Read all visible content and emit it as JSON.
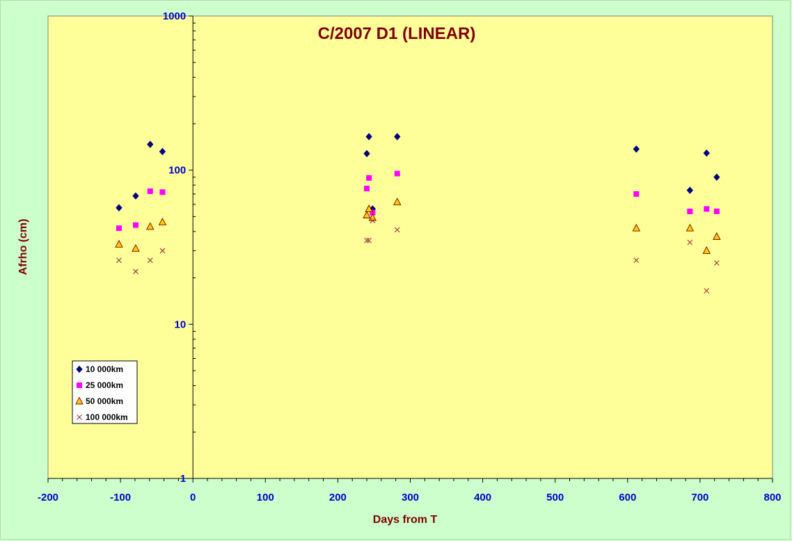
{
  "chart_data": {
    "type": "scatter",
    "title": "C/2007 D1 (LINEAR)",
    "xlabel": "Days from T",
    "ylabel": "Afrho (cm)",
    "xlim": [
      -200,
      800
    ],
    "ylim": [
      1,
      1000
    ],
    "y_scale": "log",
    "x_ticks": [
      -200,
      -100,
      0,
      100,
      200,
      300,
      400,
      500,
      600,
      700,
      800
    ],
    "y_ticks": [
      1,
      10,
      100,
      1000
    ],
    "grid": false,
    "legend_position": "bottom-left",
    "colors": {
      "plot_background": "#ffff99",
      "page_background": "#ccffcc",
      "title": "#800000",
      "axis_title": "#800000",
      "tick_labels": "#0000cc"
    },
    "series": [
      {
        "name": "10 000km",
        "marker": "diamond",
        "color": "#000080",
        "x": [
          -102,
          -79,
          -59,
          -42,
          240,
          243,
          248,
          282,
          612,
          686,
          709,
          723
        ],
        "y": [
          57,
          68,
          147,
          132,
          128,
          165,
          56,
          165,
          137,
          74,
          129,
          90
        ]
      },
      {
        "name": "25 000km",
        "marker": "square",
        "color": "#ff00ff",
        "x": [
          -102,
          -79,
          -59,
          -42,
          240,
          243,
          248,
          282,
          612,
          686,
          709,
          723
        ],
        "y": [
          42,
          44,
          73,
          72,
          76,
          89,
          53,
          95,
          70,
          54,
          56,
          54
        ]
      },
      {
        "name": "50 000km",
        "marker": "triangle",
        "color": "#ffcc00",
        "stroke": "#800000",
        "x": [
          -102,
          -79,
          -59,
          -42,
          240,
          243,
          248,
          282,
          612,
          686,
          709,
          723
        ],
        "y": [
          33,
          31,
          43,
          46,
          51,
          56,
          49,
          62,
          42,
          42,
          30,
          37
        ]
      },
      {
        "name": "100 000km",
        "marker": "x",
        "color": "#993333",
        "x": [
          -102,
          -79,
          -59,
          -42,
          240,
          243,
          248,
          282,
          612,
          686,
          709,
          723
        ],
        "y": [
          26,
          22,
          26,
          30,
          35,
          35,
          47,
          41,
          26,
          34,
          16.5,
          25
        ]
      }
    ]
  }
}
